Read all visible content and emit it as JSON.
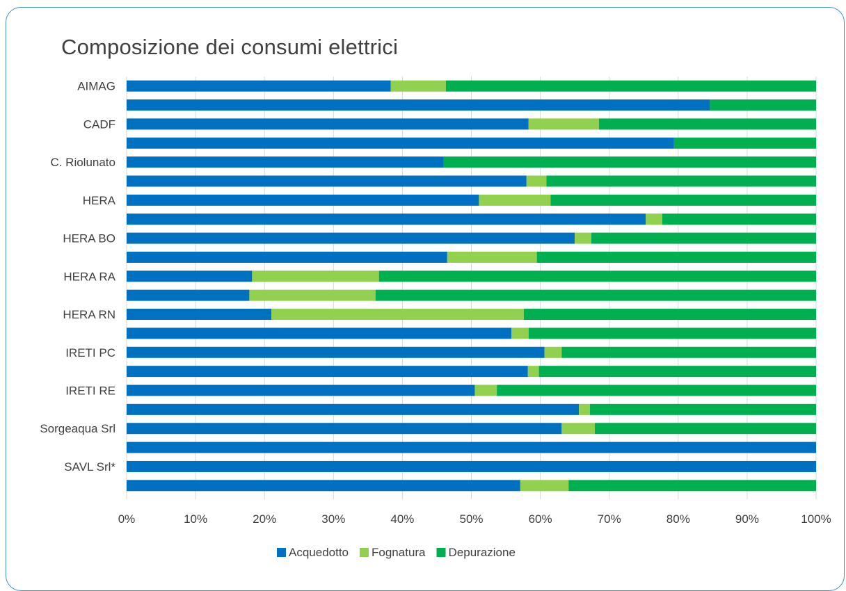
{
  "chart_data": {
    "type": "bar",
    "orientation": "horizontal",
    "stacked": "percent",
    "title": "Composizione dei consumi elettrici",
    "xlabel": "",
    "ylabel": "",
    "xlim": [
      0,
      100
    ],
    "x_ticks": [
      "0%",
      "10%",
      "20%",
      "30%",
      "40%",
      "50%",
      "60%",
      "70%",
      "80%",
      "90%",
      "100%"
    ],
    "grid": "vertical",
    "legend_position": "bottom",
    "categories": [
      "AIMAG",
      "",
      "CADF",
      "",
      "C. Riolunato",
      "",
      "HERA",
      "",
      "HERA BO",
      "",
      "HERA RA",
      "",
      "HERA RN",
      "",
      "IRETI PC",
      "",
      "IRETI RE",
      "",
      "Sorgeaqua Srl",
      "",
      "SAVL Srl*",
      ""
    ],
    "series": [
      {
        "name": "Acquedotto",
        "color": "#0070c0",
        "values": [
          38.3,
          84.6,
          58.3,
          79.4,
          46.0,
          58.0,
          51.1,
          75.3,
          65.0,
          46.5,
          18.2,
          17.8,
          21.0,
          55.8,
          60.6,
          58.2,
          50.5,
          65.6,
          63.1,
          100.0,
          100.0,
          57.1
        ]
      },
      {
        "name": "Fognatura",
        "color": "#92d050",
        "values": [
          8.0,
          0,
          10.2,
          0,
          0,
          2.9,
          10.4,
          2.4,
          2.4,
          13.0,
          18.4,
          18.3,
          36.6,
          2.5,
          2.5,
          1.6,
          3.2,
          1.6,
          4.8,
          0,
          0,
          7.0
        ]
      },
      {
        "name": "Depurazione",
        "color": "#00b050",
        "values": [
          53.7,
          15.4,
          31.5,
          20.6,
          54.0,
          39.1,
          38.5,
          22.3,
          32.6,
          40.5,
          63.4,
          63.9,
          42.4,
          41.7,
          36.9,
          40.2,
          46.3,
          32.8,
          32.1,
          0,
          0,
          35.9
        ]
      }
    ]
  }
}
